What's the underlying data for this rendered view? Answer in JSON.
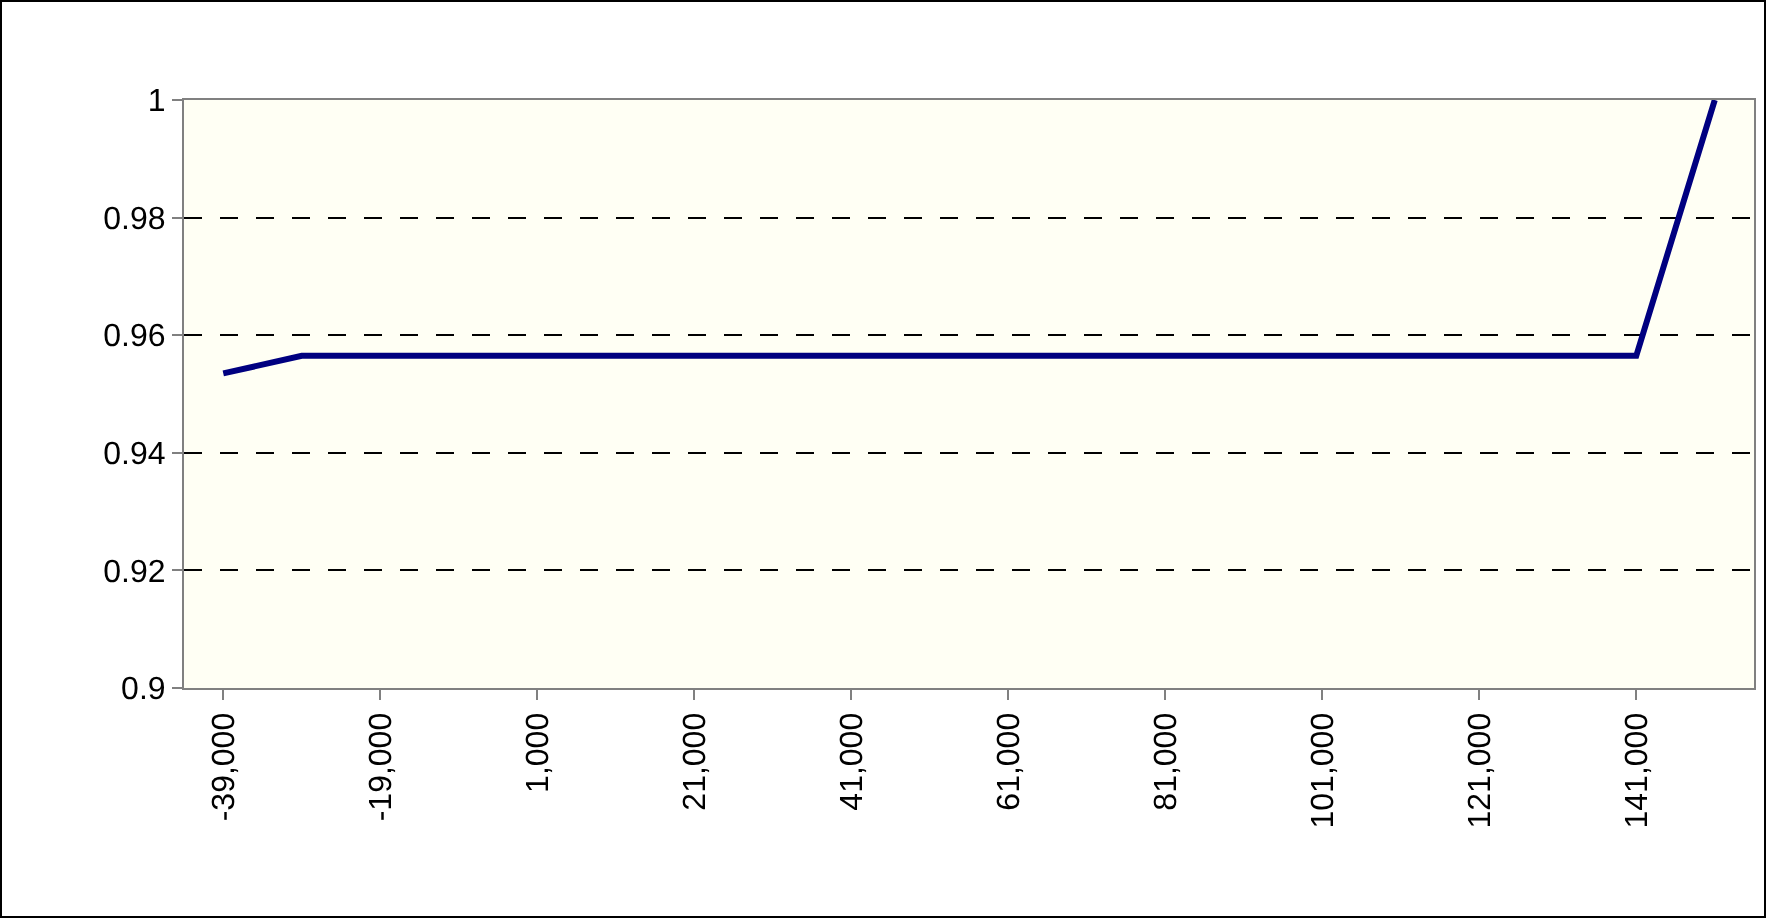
{
  "chart_data": {
    "type": "line",
    "categories": [
      "-39,000",
      null,
      "-19,000",
      null,
      "1,000",
      null,
      "21,000",
      null,
      "41,000",
      null,
      "61,000",
      null,
      "81,000",
      null,
      "101,000",
      null,
      "121,000",
      null,
      "141,000",
      null
    ],
    "series": [
      {
        "color": "#000080",
        "values": [
          0.9535,
          0.9565,
          0.9565,
          0.9565,
          0.9565,
          0.9565,
          0.9565,
          0.9565,
          0.9565,
          0.9565,
          0.9565,
          0.9565,
          0.9565,
          0.9565,
          0.9565,
          0.9565,
          0.9565,
          0.9565,
          0.9565,
          1
        ]
      }
    ],
    "ylim": [
      0.9,
      1
    ],
    "yticks": [
      0.9,
      0.92,
      0.94,
      0.96,
      0.98,
      1
    ],
    "grid": "y",
    "line_style": "solid",
    "marker": "none",
    "legend": false
  }
}
